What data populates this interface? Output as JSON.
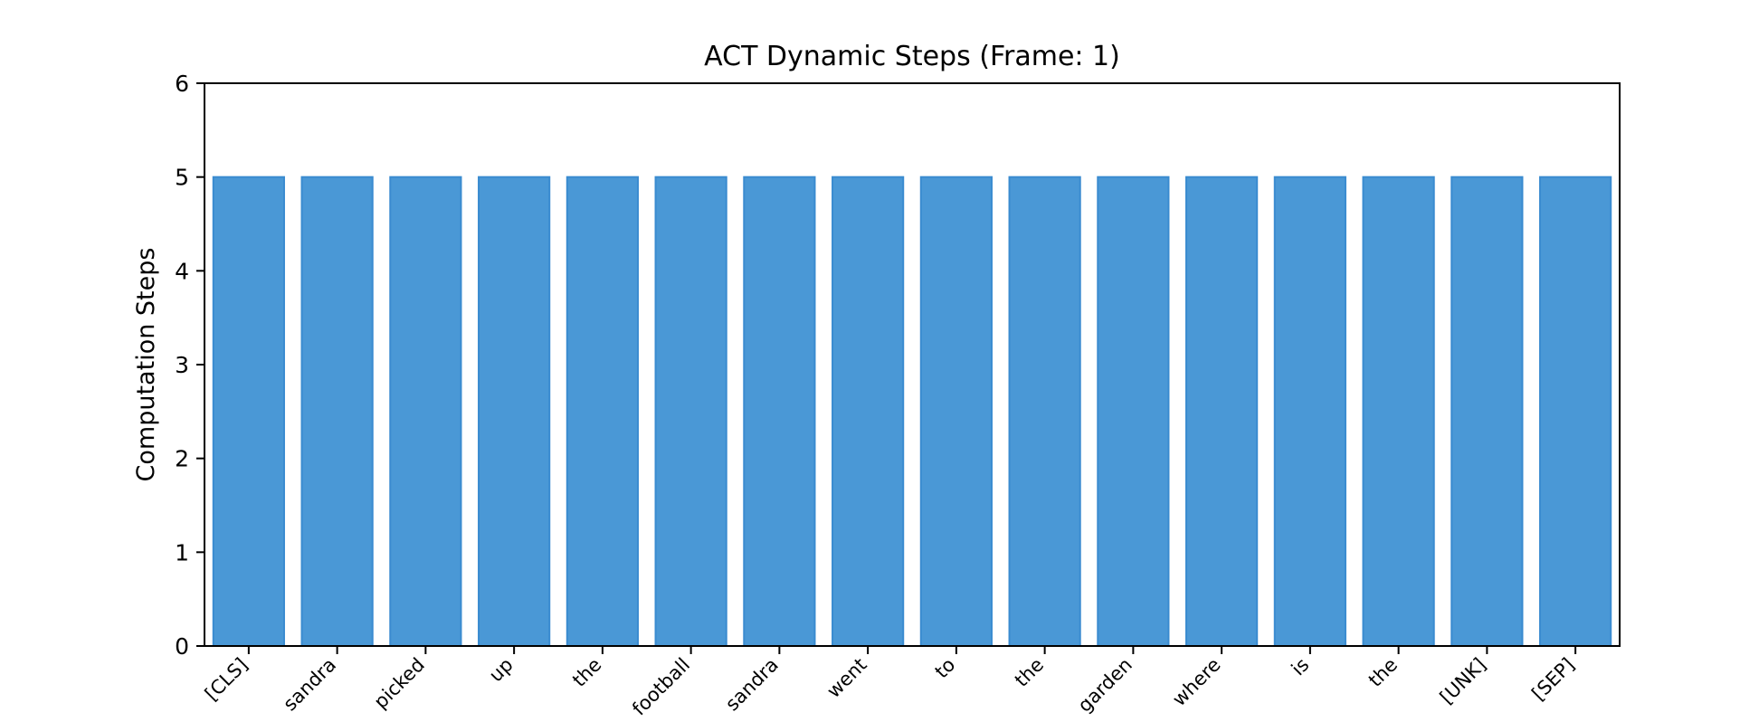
{
  "chart_data": {
    "type": "bar",
    "title": "ACT Dynamic Steps (Frame: 1)",
    "xlabel": "",
    "ylabel": "Computation Steps",
    "categories": [
      "[CLS]",
      "sandra",
      "picked",
      "up",
      "the",
      "football",
      "sandra",
      "went",
      "to",
      "the",
      "garden",
      "where",
      "is",
      "the",
      "[UNK]",
      "[SEP]"
    ],
    "values": [
      5,
      5,
      5,
      5,
      5,
      5,
      5,
      5,
      5,
      5,
      5,
      5,
      5,
      5,
      5,
      5
    ],
    "ylim": [
      0,
      6
    ],
    "yticks": [
      "0",
      "1",
      "2",
      "3",
      "4",
      "5",
      "6"
    ],
    "grid": false,
    "legend": "none",
    "colors": {
      "bar_fill": "#4a98d6",
      "bar_edge": "#3a8bd0",
      "axis": "#000000"
    }
  }
}
